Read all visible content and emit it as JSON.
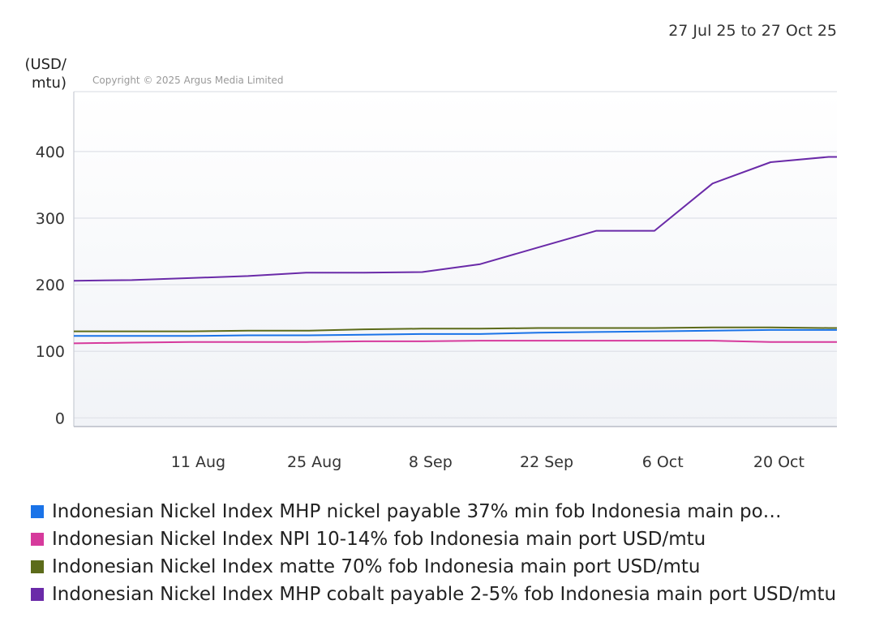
{
  "date_range": "27 Jul 25 to 27 Oct 25",
  "copyright": "Copyright © 2025 Argus Media Limited",
  "chart_data": {
    "type": "line",
    "ylabel": "(USD/\nmtu)",
    "ylim": [
      -13,
      490
    ],
    "yticks": [
      0,
      100,
      200,
      300,
      400
    ],
    "x_start": "2025-07-27",
    "x_end": "2025-10-27",
    "xticks": [
      {
        "date": "2025-08-11",
        "label": "11 Aug"
      },
      {
        "date": "2025-08-25",
        "label": "25 Aug"
      },
      {
        "date": "2025-09-08",
        "label": "8 Sep"
      },
      {
        "date": "2025-09-22",
        "label": "22 Sep"
      },
      {
        "date": "2025-10-06",
        "label": "6 Oct"
      },
      {
        "date": "2025-10-20",
        "label": "20 Oct"
      }
    ],
    "grid": true,
    "legend_position": "bottom",
    "x": [
      "2025-07-27",
      "2025-08-03",
      "2025-08-10",
      "2025-08-17",
      "2025-08-24",
      "2025-08-31",
      "2025-09-07",
      "2025-09-14",
      "2025-09-21",
      "2025-09-28",
      "2025-10-05",
      "2025-10-12",
      "2025-10-19",
      "2025-10-26",
      "2025-10-27"
    ],
    "series": [
      {
        "name": "Indonesian Nickel Index MHP nickel payable 37% min fob Indonesia main po…",
        "color": "#1a73e8",
        "values": [
          123,
          123,
          123,
          124,
          124,
          125,
          126,
          126,
          128,
          129,
          130,
          131,
          132,
          132,
          132
        ]
      },
      {
        "name": "Indonesian Nickel Index NPI 10-14% fob Indonesia main port USD/mtu",
        "color": "#d63a9c",
        "values": [
          112,
          113,
          114,
          114,
          114,
          115,
          115,
          116,
          116,
          116,
          116,
          116,
          114,
          114,
          114
        ]
      },
      {
        "name": "Indonesian Nickel Index matte 70% fob Indonesia main port USD/mtu",
        "color": "#5c6b1a",
        "values": [
          130,
          130,
          130,
          131,
          131,
          133,
          134,
          134,
          135,
          135,
          135,
          136,
          136,
          135,
          135
        ]
      },
      {
        "name": "Indonesian Nickel Index MHP cobalt payable 2-5% fob Indonesia main port USD/mtu",
        "color": "#6a2aa8",
        "values": [
          206,
          207,
          210,
          213,
          218,
          218,
          219,
          231,
          256,
          281,
          281,
          352,
          384,
          392,
          392
        ]
      }
    ]
  }
}
